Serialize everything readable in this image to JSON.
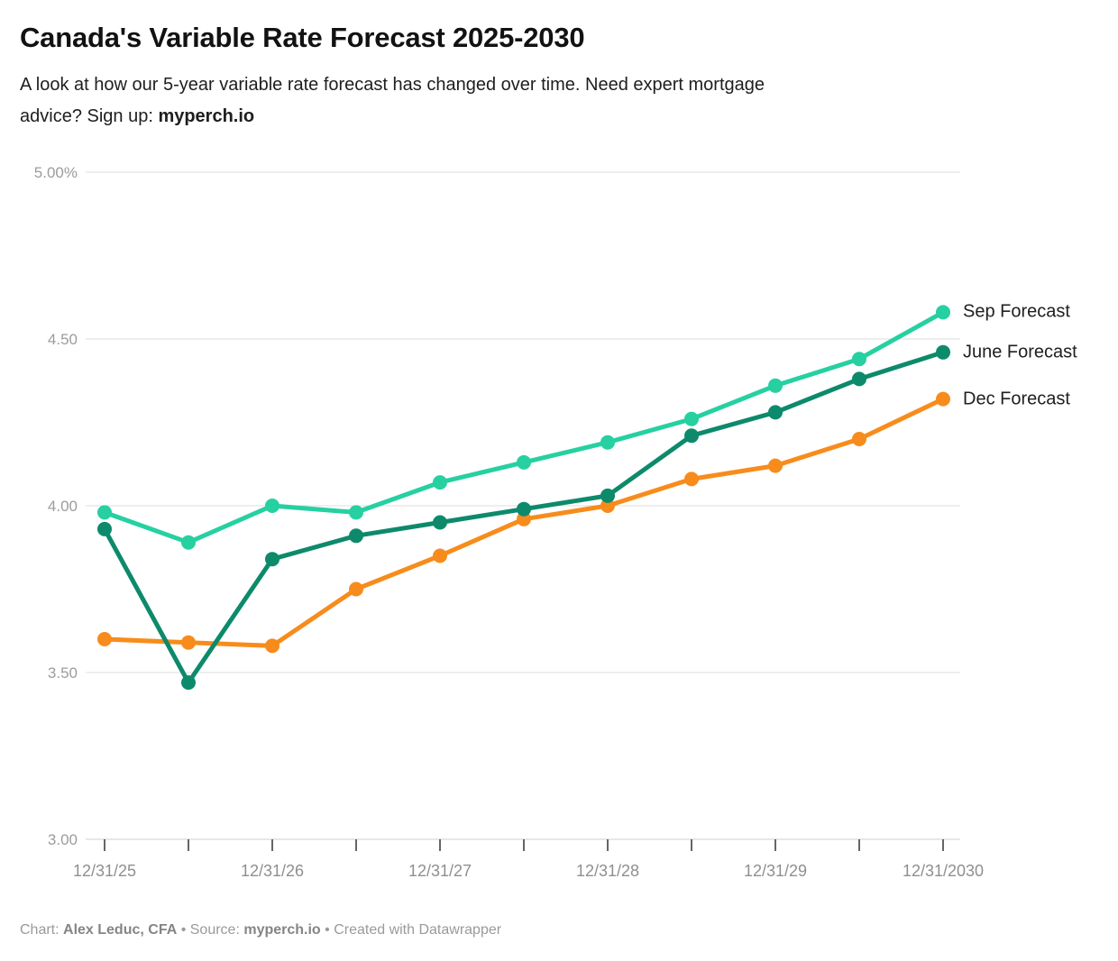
{
  "header": {
    "title": "Canada's Variable Rate Forecast 2025-2030",
    "subtitle_text": "A look at how our 5-year variable rate forecast has changed over time. Need expert mortgage\nadvice? Sign up: ",
    "subtitle_highlight": "myperch.io"
  },
  "chart_data": {
    "type": "line",
    "title": "Canada's Variable Rate Forecast 2025-2030",
    "unit": "%",
    "grid": true,
    "legend_position": "right-of-last-point",
    "ylim": [
      3.0,
      5.0
    ],
    "y_ticks": [
      {
        "value": 5.0,
        "label": "5.00%"
      },
      {
        "value": 4.5,
        "label": "4.50"
      },
      {
        "value": 4.0,
        "label": "4.00"
      },
      {
        "value": 3.5,
        "label": "3.50"
      },
      {
        "value": 3.0,
        "label": "3.00"
      }
    ],
    "x_point_count": 11,
    "x_tick_labels": [
      {
        "index": 0,
        "label": "12/31/25"
      },
      {
        "index": 2,
        "label": "12/31/26"
      },
      {
        "index": 4,
        "label": "12/31/27"
      },
      {
        "index": 6,
        "label": "12/31/28"
      },
      {
        "index": 8,
        "label": "12/31/29"
      },
      {
        "index": 10,
        "label": "12/31/2030"
      }
    ],
    "series": [
      {
        "name": "Sep Forecast",
        "color": "#26d0a1",
        "values": [
          3.98,
          3.89,
          4.0,
          3.98,
          4.07,
          4.13,
          4.19,
          4.26,
          4.36,
          4.44,
          4.58
        ]
      },
      {
        "name": "June Forecast",
        "color": "#0d8a6b",
        "values": [
          3.93,
          3.47,
          3.84,
          3.91,
          3.95,
          3.99,
          4.03,
          4.21,
          4.28,
          4.38,
          4.46
        ]
      },
      {
        "name": "Dec Forecast",
        "color": "#f78c1c",
        "values": [
          3.6,
          3.59,
          3.58,
          3.75,
          3.85,
          3.96,
          4.0,
          4.08,
          4.12,
          4.2,
          4.32
        ]
      }
    ]
  },
  "footer": {
    "chart_label": "Chart: ",
    "chart_author": "Alex Leduc, CFA",
    "separator1": " • Source: ",
    "source": "myperch.io",
    "separator2": " • Created with Datawrapper"
  }
}
